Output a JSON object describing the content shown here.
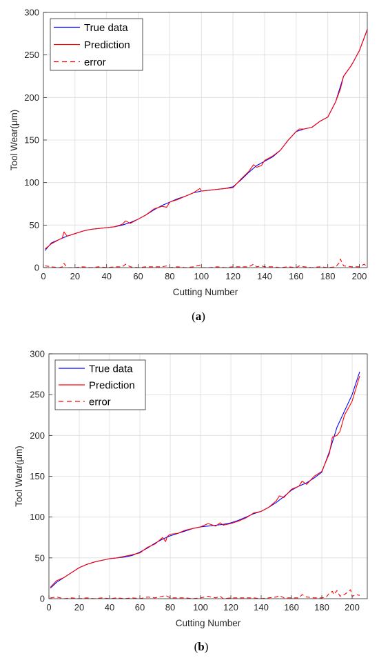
{
  "chart_data": [
    {
      "type": "line",
      "caption_open": "(",
      "caption_letter": "a",
      "caption_close": ")",
      "xlabel": "Cutting Number",
      "ylabel": "Tool Wear(μm)",
      "xlim": [
        0,
        205
      ],
      "ylim": [
        0,
        300
      ],
      "xticks": [
        0,
        20,
        40,
        60,
        80,
        100,
        120,
        140,
        160,
        180,
        200
      ],
      "yticks": [
        0,
        50,
        100,
        150,
        200,
        250,
        300
      ],
      "grid": true,
      "legend_position": "top-left",
      "series": [
        {
          "name": "True data",
          "color": "#0000ff",
          "style": "solid",
          "x": [
            1,
            5,
            10,
            15,
            20,
            25,
            30,
            35,
            40,
            45,
            50,
            55,
            60,
            65,
            70,
            75,
            80,
            85,
            90,
            95,
            100,
            105,
            110,
            115,
            120,
            125,
            130,
            135,
            140,
            145,
            150,
            155,
            160,
            165,
            170,
            175,
            180,
            185,
            190,
            195,
            200,
            205
          ],
          "y": [
            20,
            29,
            33,
            37,
            40,
            43,
            45,
            46,
            47,
            48,
            50,
            53,
            57,
            62,
            68,
            73,
            77,
            81,
            84,
            88,
            90,
            91,
            92,
            93,
            95,
            103,
            112,
            120,
            125,
            130,
            138,
            150,
            160,
            163,
            165,
            172,
            177,
            195,
            225,
            238,
            255,
            280
          ]
        },
        {
          "name": "Prediction",
          "color": "#ff0000",
          "style": "solid",
          "x": [
            1,
            5,
            10,
            12,
            13,
            15,
            20,
            25,
            30,
            35,
            40,
            45,
            50,
            52,
            55,
            60,
            65,
            70,
            75,
            78,
            80,
            85,
            90,
            95,
            99,
            100,
            105,
            110,
            115,
            120,
            125,
            130,
            133,
            135,
            138,
            140,
            145,
            150,
            155,
            160,
            162,
            165,
            170,
            175,
            180,
            185,
            188,
            190,
            195,
            200,
            205
          ],
          "y": [
            22,
            28,
            33,
            35,
            42,
            37,
            40,
            43,
            45,
            46,
            47,
            48,
            51,
            55,
            52,
            57,
            62,
            69,
            72,
            71,
            77,
            80,
            84,
            88,
            93,
            90,
            91,
            92,
            93,
            94,
            104,
            113,
            121,
            118,
            120,
            126,
            131,
            138,
            150,
            160,
            163,
            163,
            165,
            172,
            177,
            195,
            210,
            225,
            238,
            255,
            280
          ]
        },
        {
          "name": "error",
          "color": "#ff0000",
          "style": "dashed",
          "x": [
            1,
            5,
            10,
            12,
            13,
            15,
            20,
            25,
            30,
            35,
            40,
            45,
            50,
            52,
            55,
            60,
            65,
            70,
            75,
            78,
            80,
            85,
            90,
            95,
            99,
            100,
            105,
            110,
            115,
            120,
            125,
            130,
            133,
            135,
            138,
            140,
            145,
            150,
            155,
            160,
            162,
            165,
            170,
            175,
            180,
            185,
            187,
            188,
            190,
            195,
            200,
            203,
            205
          ],
          "y": [
            2,
            1,
            0,
            1,
            5,
            0,
            0,
            1,
            0,
            1,
            0,
            1,
            1,
            4,
            1,
            0,
            1,
            1,
            1,
            2,
            0,
            1,
            0,
            1,
            3,
            0,
            0,
            1,
            0,
            1,
            1,
            1,
            4,
            1,
            2,
            1,
            1,
            0,
            1,
            0,
            2,
            1,
            0,
            1,
            0,
            1,
            5,
            10,
            2,
            1,
            1,
            4,
            1
          ]
        }
      ]
    },
    {
      "type": "line",
      "caption_open": "(",
      "caption_letter": "b",
      "caption_close": ")",
      "xlabel": "Cutting Number",
      "ylabel": "Tool Wear(μm)",
      "xlim": [
        0,
        210
      ],
      "ylim": [
        0,
        300
      ],
      "xticks": [
        0,
        20,
        40,
        60,
        80,
        100,
        120,
        140,
        160,
        180,
        200
      ],
      "yticks": [
        0,
        50,
        100,
        150,
        200,
        250,
        300
      ],
      "grid": true,
      "legend_position": "top-left",
      "series": [
        {
          "name": "True data",
          "color": "#0000ff",
          "style": "solid",
          "x": [
            1,
            5,
            10,
            15,
            20,
            25,
            30,
            35,
            40,
            45,
            50,
            55,
            60,
            65,
            70,
            75,
            80,
            85,
            90,
            95,
            100,
            105,
            110,
            115,
            120,
            125,
            130,
            135,
            140,
            145,
            150,
            155,
            160,
            165,
            170,
            175,
            180,
            185,
            190,
            195,
            200,
            205
          ],
          "y": [
            13,
            20,
            26,
            32,
            38,
            42,
            45,
            47,
            49,
            50,
            51,
            53,
            57,
            62,
            68,
            73,
            77,
            80,
            83,
            86,
            88,
            89,
            90,
            91,
            93,
            96,
            100,
            104,
            107,
            112,
            118,
            125,
            133,
            138,
            142,
            148,
            155,
            180,
            210,
            230,
            250,
            278
          ]
        },
        {
          "name": "Prediction",
          "color": "#ff0000",
          "style": "solid",
          "x": [
            1,
            5,
            10,
            15,
            20,
            25,
            30,
            35,
            40,
            45,
            50,
            55,
            60,
            65,
            70,
            75,
            77,
            78,
            80,
            85,
            90,
            95,
            100,
            105,
            110,
            113,
            115,
            120,
            125,
            130,
            135,
            140,
            145,
            150,
            152,
            155,
            160,
            165,
            167,
            170,
            175,
            180,
            185,
            187,
            190,
            192,
            195,
            198,
            200,
            205
          ],
          "y": [
            14,
            22,
            26,
            32,
            38,
            42,
            45,
            47,
            49,
            50,
            52,
            54,
            56,
            63,
            67,
            75,
            70,
            76,
            79,
            80,
            84,
            86,
            88,
            92,
            89,
            93,
            90,
            92,
            95,
            99,
            105,
            107,
            112,
            120,
            126,
            124,
            134,
            138,
            144,
            140,
            150,
            156,
            178,
            198,
            200,
            205,
            225,
            235,
            242,
            273
          ]
        },
        {
          "name": "error",
          "color": "#ff0000",
          "style": "dashed",
          "x": [
            1,
            5,
            10,
            15,
            20,
            25,
            30,
            35,
            40,
            45,
            50,
            55,
            60,
            65,
            70,
            75,
            77,
            80,
            85,
            90,
            95,
            100,
            105,
            110,
            113,
            115,
            120,
            125,
            130,
            135,
            140,
            145,
            150,
            152,
            155,
            160,
            165,
            167,
            170,
            175,
            180,
            183,
            185,
            187,
            188,
            190,
            192,
            194,
            195,
            197,
            199,
            200,
            203,
            205
          ],
          "y": [
            1,
            2,
            0,
            1,
            0,
            1,
            0,
            1,
            0,
            1,
            0,
            1,
            0,
            2,
            1,
            3,
            4,
            1,
            1,
            1,
            0,
            1,
            3,
            1,
            3,
            0,
            1,
            1,
            1,
            1,
            0,
            1,
            2,
            4,
            1,
            1,
            1,
            5,
            2,
            1,
            1,
            2,
            7,
            9,
            5,
            10,
            3,
            5,
            5,
            8,
            11,
            3,
            5,
            4
          ]
        }
      ]
    }
  ]
}
